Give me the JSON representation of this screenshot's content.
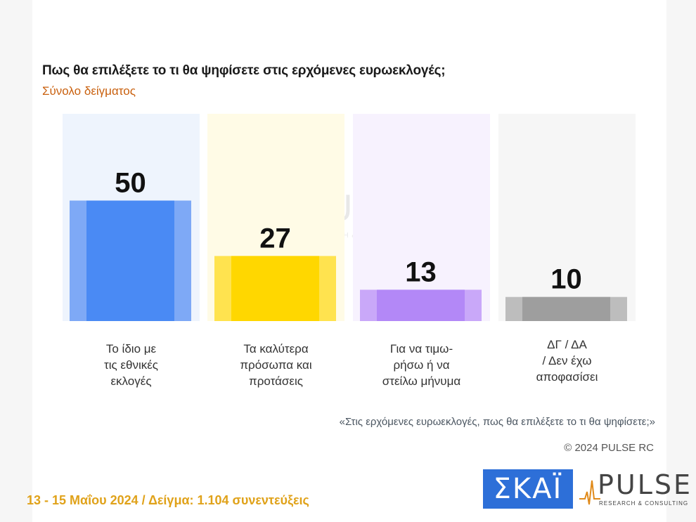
{
  "header": {
    "title": "Πως θα επιλέξετε το τι θα ψηφίσετε στις ερχόμενες ευρωεκλογές;",
    "subtitle": "Σύνολο δείγματος"
  },
  "chart_data": {
    "type": "bar",
    "categories": [
      [
        "Το ίδιο με",
        "τις εθνικές",
        "εκλογές"
      ],
      [
        "Τα καλύτερα",
        "πρόσωπα και",
        "προτάσεις"
      ],
      [
        "Για να τιμω-",
        "ρήσω ή να",
        "στείλω μήνυμα"
      ],
      [
        "ΔΓ / ΔΑ",
        "/ Δεν έχω",
        "αποφασίσει"
      ]
    ],
    "values": [
      50,
      27,
      13,
      10
    ],
    "colors": [
      "#4a8af4",
      "#ffd700",
      "#b388f7",
      "#9e9e9e"
    ],
    "light_colors": [
      "#7ea9f6",
      "#ffe34f",
      "#c9a8f9",
      "#bdbdbd"
    ],
    "backgrounds": [
      "#eef4fd",
      "#fffbe6",
      "#f7f2fe",
      "#f6f6f6"
    ],
    "ylim": [
      0,
      86
    ]
  },
  "question_note": "«Στις ερχόμενες ευρωεκλογές, πως θα επιλέξετε το τι θα ψηφίσετε;»",
  "copyright": "© 2024 PULSE RC",
  "footer": "13 - 15  Μαΐου 2024  /  Δείγμα:  1.104 συνεντεύξεις",
  "logos": {
    "skai": "ΣΚΑΪ",
    "pulse_word": "PULSE",
    "pulse_tag": "RESEARCH & CONSULTING",
    "skai_color": "#2d6fd8"
  }
}
